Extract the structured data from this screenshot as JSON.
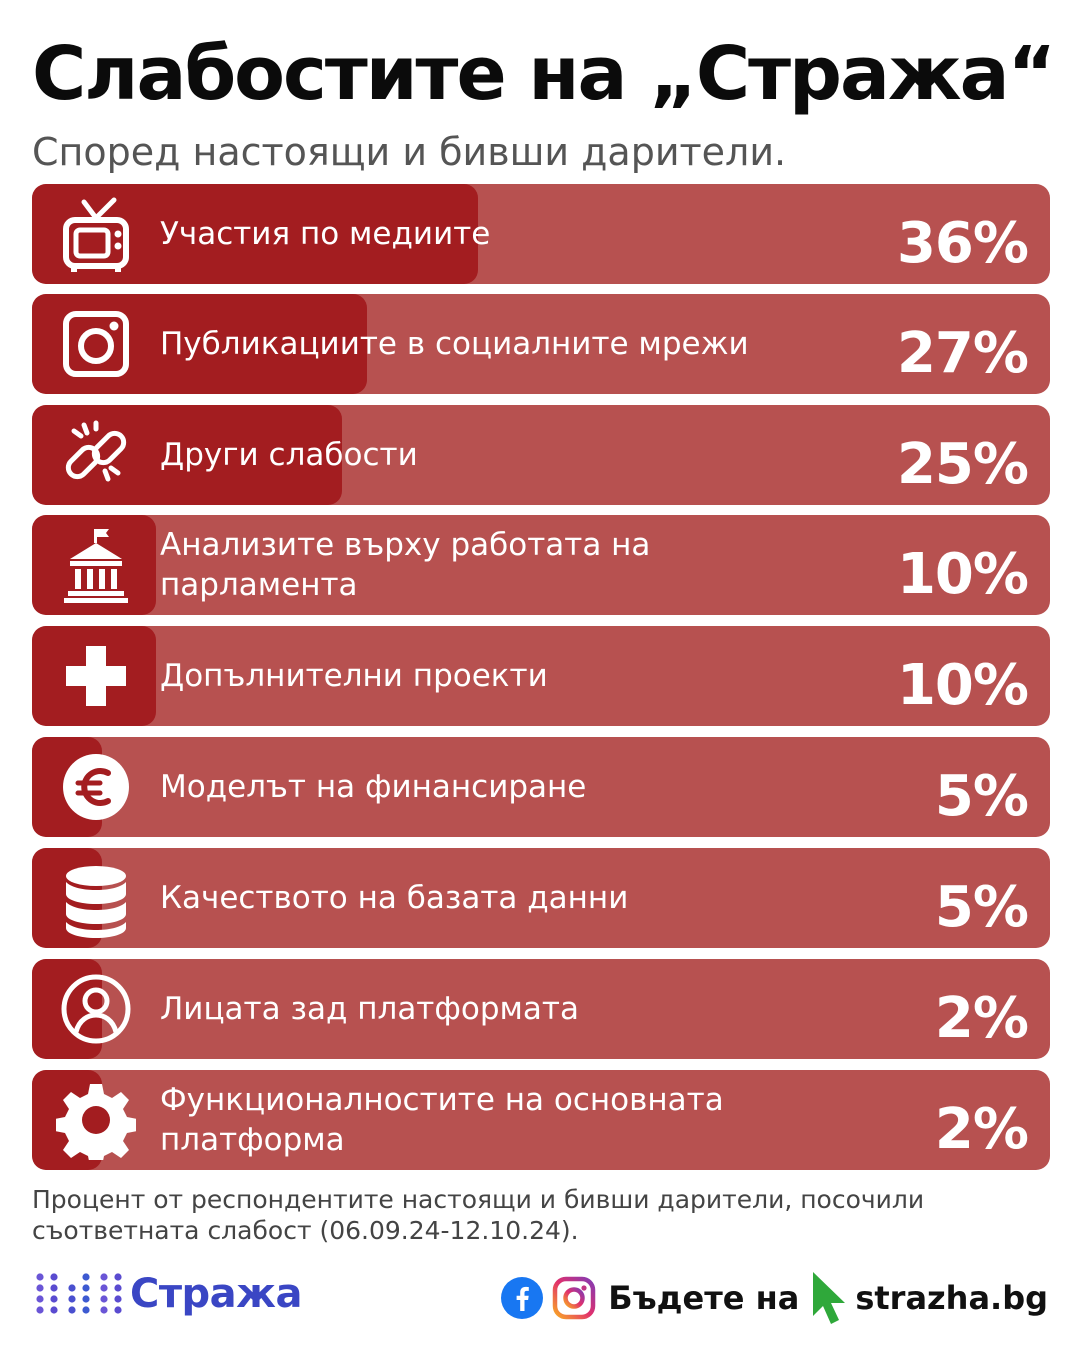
{
  "header": {
    "title": "Слабостите на „Стража“",
    "subtitle": "Според настоящи и бивши дарители."
  },
  "colors": {
    "bar_track": "#b75150",
    "bar_fill": "#a31d20",
    "brand_blue": "#3a46c4",
    "cursor_green": "#2fa83a"
  },
  "chart_data": {
    "type": "bar",
    "orientation": "horizontal",
    "unit": "%",
    "xlim": [
      0,
      100
    ],
    "categories": [
      "Участия по медиите",
      "Публикациите в социалните мрежи",
      "Други слабости",
      "Анализите върху работата на парламента",
      "Допълнителни проекти",
      "Моделът на финансиране",
      "Качеството на базата данни",
      "Лицата зад платформата",
      "Функционалностите на основната платформа"
    ],
    "values": [
      36,
      27,
      25,
      10,
      10,
      5,
      5,
      2,
      2
    ],
    "value_labels": [
      "36%",
      "27%",
      "25%",
      "10%",
      "10%",
      "5%",
      "5%",
      "2%",
      "2%"
    ],
    "icons": [
      "tv-icon",
      "instagram-icon",
      "broken-link-icon",
      "parliament-icon",
      "plus-icon",
      "euro-icon",
      "database-icon",
      "user-icon",
      "gear-icon"
    ]
  },
  "footnote": "Процент от респондентите настоящи и бивши дарители, посочили съответната слабост (06.09.24-12.10.24).",
  "footer": {
    "brand": "Стража",
    "cta_text": "Бъдете на",
    "site": "strazha.bg",
    "social_icons": [
      "facebook-icon",
      "instagram-icon"
    ]
  }
}
